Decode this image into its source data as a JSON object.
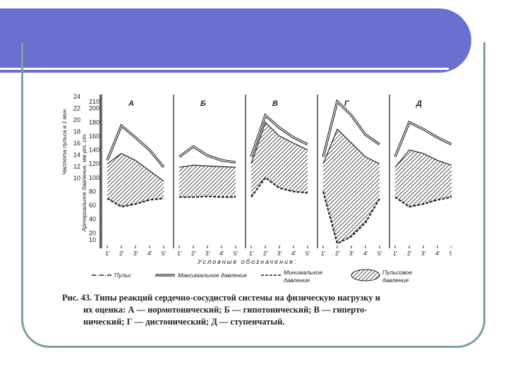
{
  "slide": {
    "banner_color": "#6b6fcf",
    "frame_color": "#7aa39f"
  },
  "chart_data": {
    "type": "line",
    "ylabel_pulse": "Частота пульса в 1 мин.",
    "ylabel_pressure": "Артериальное давление, мм рт. ст.",
    "pulse_ticks": [
      24,
      22,
      20,
      18,
      16,
      14,
      12,
      10
    ],
    "pressure_ticks": [
      210,
      200,
      180,
      160,
      140,
      120,
      100,
      80,
      60,
      40,
      20,
      10
    ],
    "x_ticks": [
      "1'",
      "2'",
      "3'",
      "4'",
      "5'"
    ],
    "xlabel": "Условные обозначения:",
    "legend": [
      {
        "label": "Пульс",
        "style": "dash-dot"
      },
      {
        "label": "Максимальное давление",
        "style": "double-line"
      },
      {
        "label": "Минимальное давление",
        "style": "dashed"
      },
      {
        "label": "Пульсовое давление",
        "style": "hatched-fill"
      }
    ],
    "panels": [
      {
        "label": "А",
        "max_pressure": [
          125,
          175,
          158,
          140,
          115
        ],
        "min_pressure": [
          70,
          58,
          62,
          68,
          70
        ],
        "pulse_pressure_value": [
          120,
          135,
          125,
          110,
          95
        ]
      },
      {
        "label": "Б",
        "max_pressure": [
          130,
          145,
          132,
          125,
          122
        ],
        "min_pressure": [
          72,
          72,
          73,
          72,
          72
        ],
        "pulse_pressure_value": [
          115,
          118,
          117,
          116,
          115
        ]
      },
      {
        "label": "В",
        "max_pressure": [
          130,
          190,
          172,
          158,
          148
        ],
        "min_pressure": [
          72,
          100,
          85,
          80,
          78
        ],
        "pulse_pressure_value": [
          120,
          180,
          160,
          150,
          140
        ]
      },
      {
        "label": "Г",
        "max_pressure": [
          130,
          210,
          190,
          162,
          148
        ],
        "min_pressure": [
          80,
          5,
          15,
          35,
          70
        ],
        "pulse_pressure_value": [
          120,
          170,
          150,
          130,
          120
        ]
      },
      {
        "label": "Д",
        "max_pressure": [
          130,
          180,
          170,
          158,
          148
        ],
        "min_pressure": [
          72,
          58,
          62,
          68,
          72
        ],
        "pulse_pressure_value": [
          115,
          140,
          135,
          125,
          118
        ]
      }
    ]
  },
  "caption": {
    "line1": "Рис. 43. Типы реакций сердечно-сосудистой системы на физическую нагрузку и",
    "line2": "их оценка: А — нормотонический; Б — гипотонический; В — гиперто-",
    "line3": "нический; Г — дистонический; Д — ступенчатый."
  }
}
